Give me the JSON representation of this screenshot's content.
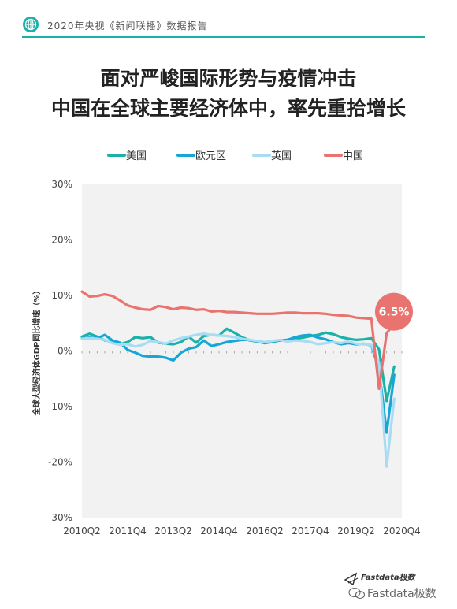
{
  "header": {
    "text": "2020年央视《新闻联播》数据报告"
  },
  "title": {
    "line1": "面对严峻国际形势与疫情冲击",
    "line2": "中国在全球主要经济体中，率先重拾增长"
  },
  "footer": {
    "brand_small": "Fastdata极数",
    "brand_wechat": "Fastdata极数"
  },
  "chart_data": {
    "type": "line",
    "ylabel": "全球大型经济体GDP同比增速（%）",
    "ylim": [
      -30,
      30
    ],
    "yticks": [
      "-30%",
      "-20%",
      "-10%",
      "0%",
      "10%",
      "20%",
      "30%"
    ],
    "xticks": [
      "2010Q2",
      "2011Q4",
      "2013Q2",
      "2014Q4",
      "2016Q2",
      "2017Q4",
      "2019Q2",
      "2020Q4"
    ],
    "annotation": {
      "text": "6.5%",
      "series": "中国",
      "x": "2020Q4",
      "y": 6.5,
      "color": "#e8736f"
    },
    "series": [
      {
        "name": "美国",
        "color": "#1bb1a8",
        "points": [
          [
            "2010Q2",
            2.6
          ],
          [
            "2010Q3",
            3.1
          ],
          [
            "2010Q4",
            2.6
          ],
          [
            "2011Q1",
            1.9
          ],
          [
            "2011Q2",
            1.7
          ],
          [
            "2011Q3",
            1.2
          ],
          [
            "2011Q4",
            1.6
          ],
          [
            "2012Q1",
            2.5
          ],
          [
            "2012Q2",
            2.3
          ],
          [
            "2012Q3",
            2.5
          ],
          [
            "2012Q4",
            1.5
          ],
          [
            "2013Q1",
            1.3
          ],
          [
            "2013Q2",
            1.2
          ],
          [
            "2013Q3",
            1.6
          ],
          [
            "2013Q4",
            2.6
          ],
          [
            "2014Q1",
            1.5
          ],
          [
            "2014Q2",
            2.7
          ],
          [
            "2014Q3",
            2.9
          ],
          [
            "2014Q4",
            2.8
          ],
          [
            "2015Q1",
            4.0
          ],
          [
            "2015Q2",
            3.3
          ],
          [
            "2015Q3",
            2.5
          ],
          [
            "2015Q4",
            1.9
          ],
          [
            "2016Q1",
            1.7
          ],
          [
            "2016Q2",
            1.4
          ],
          [
            "2016Q3",
            1.6
          ],
          [
            "2016Q4",
            1.9
          ],
          [
            "2017Q1",
            2.0
          ],
          [
            "2017Q2",
            2.2
          ],
          [
            "2017Q3",
            2.4
          ],
          [
            "2017Q4",
            2.7
          ],
          [
            "2018Q1",
            2.9
          ],
          [
            "2018Q2",
            3.3
          ],
          [
            "2018Q3",
            3.0
          ],
          [
            "2018Q4",
            2.5
          ],
          [
            "2019Q1",
            2.2
          ],
          [
            "2019Q2",
            2.0
          ],
          [
            "2019Q3",
            2.1
          ],
          [
            "2019Q4",
            2.3
          ],
          [
            "2020Q1",
            0.3
          ],
          [
            "2020Q2",
            -9.0
          ],
          [
            "2020Q3",
            -2.8
          ]
        ]
      },
      {
        "name": "欧元区",
        "color": "#16a6d8",
        "points": [
          [
            "2010Q2",
            2.3
          ],
          [
            "2010Q3",
            2.4
          ],
          [
            "2010Q4",
            2.3
          ],
          [
            "2011Q1",
            2.9
          ],
          [
            "2011Q2",
            1.9
          ],
          [
            "2011Q3",
            1.5
          ],
          [
            "2011Q4",
            0.2
          ],
          [
            "2012Q1",
            -0.3
          ],
          [
            "2012Q2",
            -0.9
          ],
          [
            "2012Q3",
            -1.0
          ],
          [
            "2012Q4",
            -1.0
          ],
          [
            "2013Q1",
            -1.2
          ],
          [
            "2013Q2",
            -1.7
          ],
          [
            "2013Q3",
            -0.3
          ],
          [
            "2013Q4",
            0.4
          ],
          [
            "2014Q1",
            0.7
          ],
          [
            "2014Q2",
            1.9
          ],
          [
            "2014Q3",
            0.9
          ],
          [
            "2014Q4",
            1.2
          ],
          [
            "2015Q1",
            1.6
          ],
          [
            "2015Q2",
            1.8
          ],
          [
            "2015Q3",
            2.0
          ],
          [
            "2015Q4",
            2.0
          ],
          [
            "2016Q1",
            1.7
          ],
          [
            "2016Q2",
            1.5
          ],
          [
            "2016Q3",
            1.8
          ],
          [
            "2016Q4",
            1.9
          ],
          [
            "2017Q1",
            2.0
          ],
          [
            "2017Q2",
            2.5
          ],
          [
            "2017Q3",
            2.8
          ],
          [
            "2017Q4",
            2.9
          ],
          [
            "2018Q1",
            2.4
          ],
          [
            "2018Q2",
            2.1
          ],
          [
            "2018Q3",
            1.6
          ],
          [
            "2018Q4",
            1.2
          ],
          [
            "2019Q1",
            1.4
          ],
          [
            "2019Q2",
            1.2
          ],
          [
            "2019Q3",
            1.3
          ],
          [
            "2019Q4",
            1.0
          ],
          [
            "2020Q1",
            -3.3
          ],
          [
            "2020Q2",
            -14.7
          ],
          [
            "2020Q3",
            -4.3
          ]
        ]
      },
      {
        "name": "英国",
        "color": "#a7dcf2",
        "points": [
          [
            "2010Q2",
            2.2
          ],
          [
            "2010Q3",
            2.3
          ],
          [
            "2010Q4",
            2.2
          ],
          [
            "2011Q1",
            2.0
          ],
          [
            "2011Q2",
            1.4
          ],
          [
            "2011Q3",
            1.1
          ],
          [
            "2011Q4",
            1.2
          ],
          [
            "2012Q1",
            0.8
          ],
          [
            "2012Q2",
            1.1
          ],
          [
            "2012Q3",
            1.8
          ],
          [
            "2012Q4",
            1.6
          ],
          [
            "2013Q1",
            1.3
          ],
          [
            "2013Q2",
            1.9
          ],
          [
            "2013Q3",
            2.3
          ],
          [
            "2013Q4",
            2.6
          ],
          [
            "2014Q1",
            2.9
          ],
          [
            "2014Q2",
            3.1
          ],
          [
            "2014Q3",
            2.9
          ],
          [
            "2014Q4",
            2.8
          ],
          [
            "2015Q1",
            2.7
          ],
          [
            "2015Q2",
            2.5
          ],
          [
            "2015Q3",
            2.2
          ],
          [
            "2015Q4",
            2.0
          ],
          [
            "2016Q1",
            1.8
          ],
          [
            "2016Q2",
            1.6
          ],
          [
            "2016Q3",
            1.8
          ],
          [
            "2016Q4",
            2.0
          ],
          [
            "2017Q1",
            1.7
          ],
          [
            "2017Q2",
            1.9
          ],
          [
            "2017Q3",
            1.8
          ],
          [
            "2017Q4",
            1.6
          ],
          [
            "2018Q1",
            1.2
          ],
          [
            "2018Q2",
            1.4
          ],
          [
            "2018Q3",
            1.6
          ],
          [
            "2018Q4",
            1.4
          ],
          [
            "2019Q1",
            1.7
          ],
          [
            "2019Q2",
            1.3
          ],
          [
            "2019Q3",
            1.2
          ],
          [
            "2019Q4",
            1.1
          ],
          [
            "2020Q1",
            -2.2
          ],
          [
            "2020Q2",
            -20.8
          ],
          [
            "2020Q3",
            -8.6
          ]
        ]
      },
      {
        "name": "中国",
        "color": "#e8736f",
        "points": [
          [
            "2010Q2",
            10.7
          ],
          [
            "2010Q3",
            9.8
          ],
          [
            "2010Q4",
            9.9
          ],
          [
            "2011Q1",
            10.2
          ],
          [
            "2011Q2",
            9.9
          ],
          [
            "2011Q3",
            9.1
          ],
          [
            "2011Q4",
            8.2
          ],
          [
            "2012Q1",
            7.8
          ],
          [
            "2012Q2",
            7.5
          ],
          [
            "2012Q3",
            7.4
          ],
          [
            "2012Q4",
            8.1
          ],
          [
            "2013Q1",
            7.9
          ],
          [
            "2013Q2",
            7.5
          ],
          [
            "2013Q3",
            7.8
          ],
          [
            "2013Q4",
            7.7
          ],
          [
            "2014Q1",
            7.4
          ],
          [
            "2014Q2",
            7.5
          ],
          [
            "2014Q3",
            7.1
          ],
          [
            "2014Q4",
            7.2
          ],
          [
            "2015Q1",
            7.0
          ],
          [
            "2015Q2",
            7.0
          ],
          [
            "2015Q3",
            6.9
          ],
          [
            "2015Q4",
            6.8
          ],
          [
            "2016Q1",
            6.7
          ],
          [
            "2016Q2",
            6.7
          ],
          [
            "2016Q3",
            6.7
          ],
          [
            "2016Q4",
            6.8
          ],
          [
            "2017Q1",
            6.9
          ],
          [
            "2017Q2",
            6.9
          ],
          [
            "2017Q3",
            6.8
          ],
          [
            "2017Q4",
            6.8
          ],
          [
            "2018Q1",
            6.8
          ],
          [
            "2018Q2",
            6.7
          ],
          [
            "2018Q3",
            6.5
          ],
          [
            "2018Q4",
            6.4
          ],
          [
            "2019Q1",
            6.3
          ],
          [
            "2019Q2",
            6.0
          ],
          [
            "2019Q3",
            5.9
          ],
          [
            "2019Q4",
            5.8
          ],
          [
            "2020Q1",
            -6.8
          ],
          [
            "2020Q2",
            3.2
          ],
          [
            "2020Q3",
            4.9
          ],
          [
            "2020Q4",
            6.5
          ]
        ]
      }
    ]
  }
}
